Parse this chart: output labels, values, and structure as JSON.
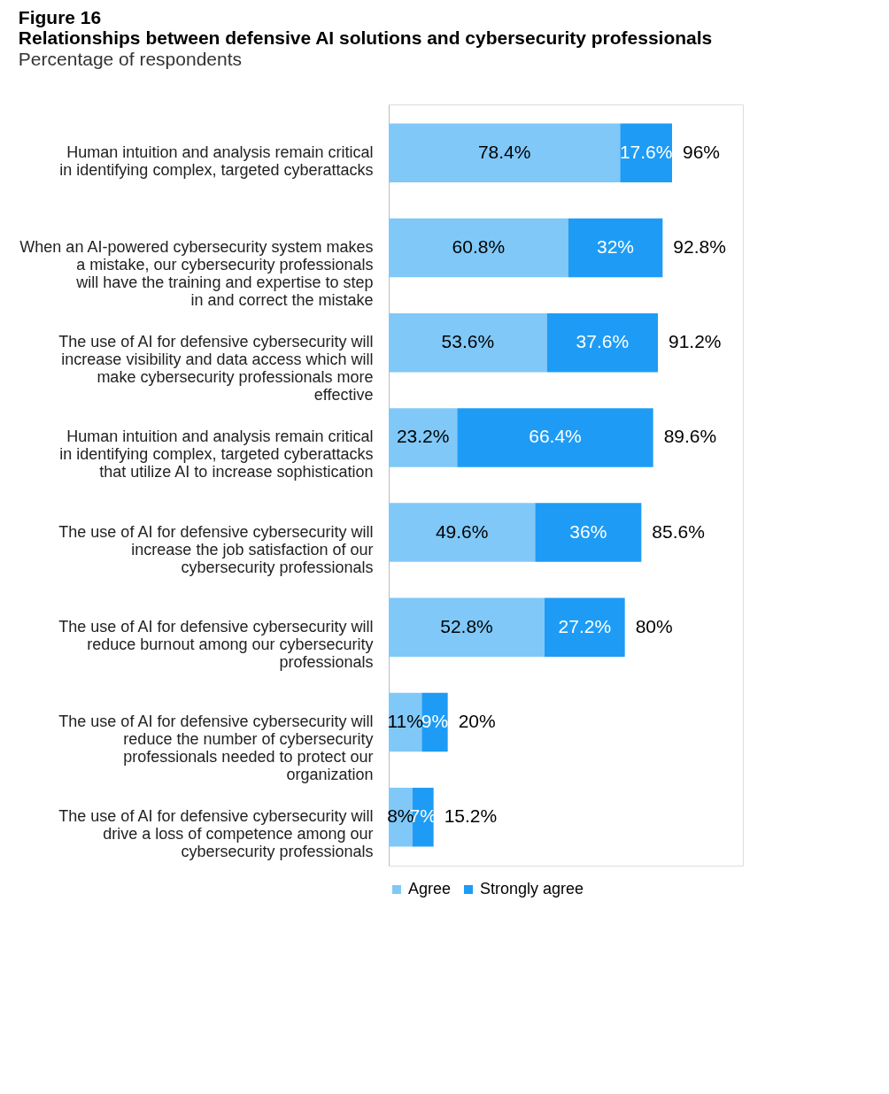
{
  "chart_data": {
    "type": "bar",
    "orientation": "horizontal",
    "stacked": true,
    "annotations": [
      "Figure 16"
    ],
    "title": "Relationships between defensive AI solutions and cybersecurity professionals",
    "subtitle": "Percentage of respondents",
    "categories": [
      "Human intuition and analysis remain critical in identifying complex, targeted cyberattacks",
      "When an AI-powered cybersecurity system makes a mistake, our cybersecurity professionals will have the training and expertise to step in and correct the mistake",
      "The use of AI for defensive cybersecurity will increase visibility and data access which will make cybersecurity professionals more effective",
      "Human intuition and analysis remain critical in identifying complex, targeted cyberattacks that utilize AI to increase sophistication",
      "The use of AI for defensive cybersecurity will increase the job satisfaction of our cybersecurity professionals",
      "The use of AI for defensive cybersecurity will reduce burnout among our cybersecurity professionals",
      "The use of AI for defensive cybersecurity will reduce the number of cybersecurity professionals needed to protect our organization",
      "The use of AI for defensive cybersecurity will drive a loss of competence among our cybersecurity professionals"
    ],
    "series": [
      {
        "name": "Agree",
        "color": "#80c8f8",
        "values": [
          78.4,
          60.8,
          53.6,
          23.2,
          49.6,
          52.8,
          11.2,
          8
        ],
        "value_labels": [
          "78.4%",
          "60.8%",
          "53.6%",
          "23.2%",
          "49.6%",
          "52.8%",
          "11%",
          "8%"
        ]
      },
      {
        "name": "Strongly agree",
        "color": "#1e9cf5",
        "values": [
          17.6,
          32,
          37.6,
          66.4,
          36,
          27.2,
          8.8,
          7.2
        ],
        "value_labels": [
          "17.6%",
          "32%",
          "37.6%",
          "66.4%",
          "36%",
          "27.2%",
          "9%",
          "7%"
        ]
      }
    ],
    "totals": [
      "96%",
      "92.8%",
      "91.2%",
      "89.6%",
      "85.6%",
      "80%",
      "20%",
      "15.2%"
    ],
    "legend": "bottom",
    "grid": false
  }
}
